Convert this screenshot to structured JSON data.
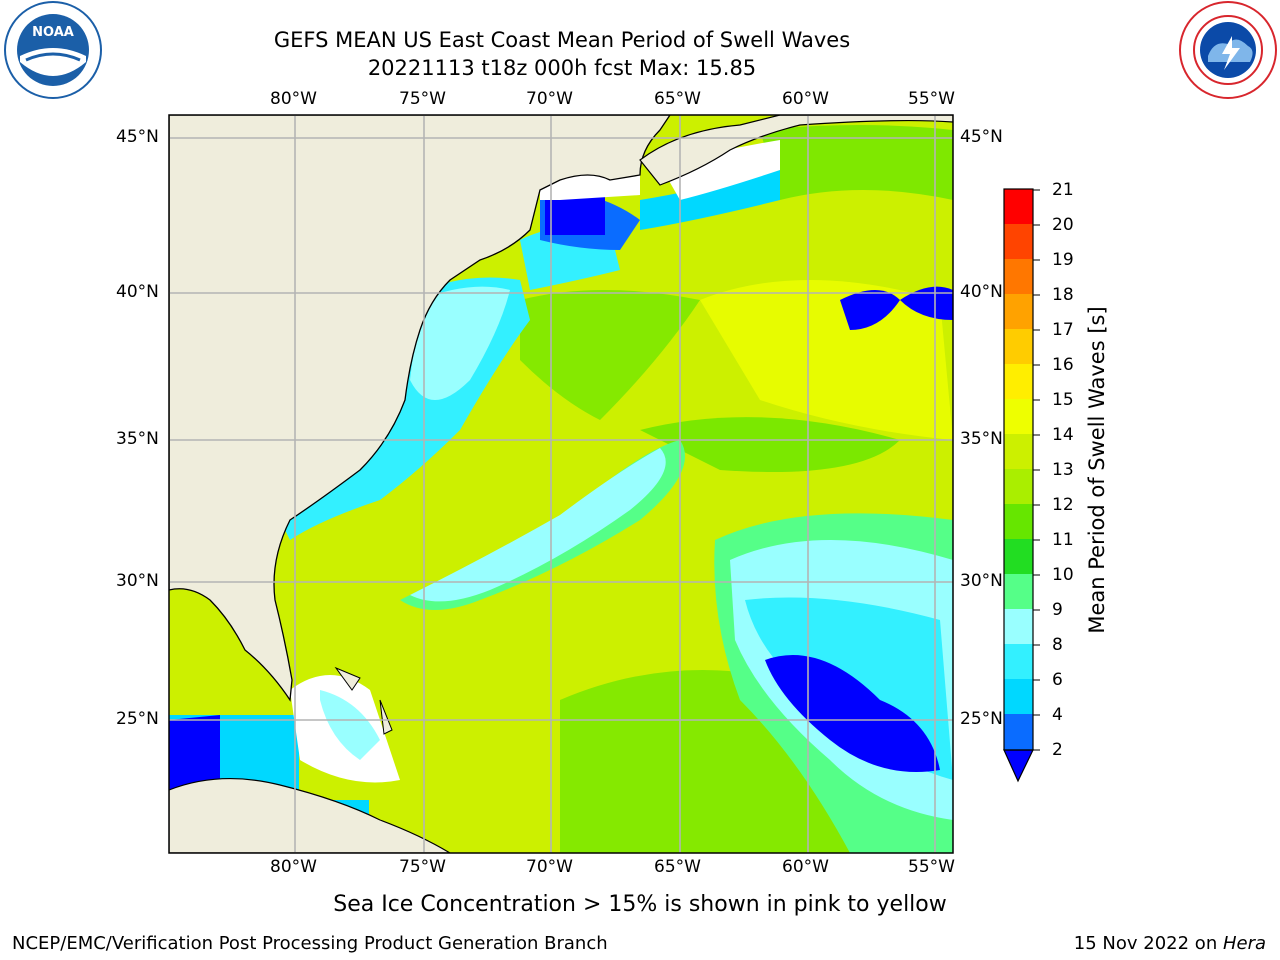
{
  "header": {
    "title_line1": "GEFS MEAN US East Coast Mean Period of Swell Waves",
    "title_line2": "20221113 t18z 000h fcst   Max: 15.85"
  },
  "logos": {
    "left": {
      "name": "NOAA",
      "ring_text": "NATIONAL OCEANIC AND ATMOSPHERIC ADMINISTRATION · U.S. DEPARTMENT OF COMMERCE",
      "color": "#1b5fa8"
    },
    "right": {
      "name": "NATIONAL WEATHER SERVICE",
      "color": "#d8262d"
    }
  },
  "map": {
    "lon_ticks": [
      "80°W",
      "75°W",
      "70°W",
      "65°W",
      "60°W",
      "55°W"
    ],
    "lat_ticks": [
      "45°N",
      "40°N",
      "35°N",
      "30°N",
      "25°N"
    ],
    "land_color": "#efeddc",
    "gridlines": true
  },
  "colorbar": {
    "label": "Mean Period of Swell Waves [s]",
    "ticks": [
      "21",
      "20",
      "19",
      "18",
      "17",
      "16",
      "15",
      "14",
      "13",
      "12",
      "11",
      "10",
      "9",
      "8",
      "6",
      "4",
      "2"
    ],
    "colors": [
      "#0000ff",
      "#0a6cff",
      "#00d8ff",
      "#33f0ff",
      "#99ffff",
      "#55ff88",
      "#22dd22",
      "#66e600",
      "#aaee00",
      "#ccf000",
      "#eeff00",
      "#ffee00",
      "#ffcc00",
      "#ffa200",
      "#ff7700",
      "#ff4400",
      "#ff0000"
    ],
    "extend_min_color": "#0000ff"
  },
  "footnote": "Sea Ice Concentration > 15% is shown in pink to yellow",
  "footer": {
    "left": "NCEP/EMC/Verification Post Processing Product Generation Branch",
    "right_date": "15 Nov 2022 on ",
    "right_host": "Hera"
  }
}
